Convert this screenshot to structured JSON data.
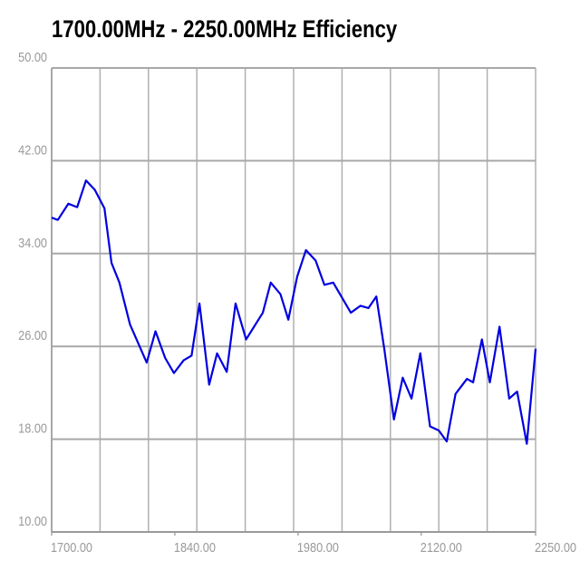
{
  "chart_data": {
    "type": "line",
    "title": "1700.00MHz - 2250.00MHz Efficiency",
    "x": [
      1700,
      1707,
      1719,
      1729,
      1739,
      1749,
      1760,
      1768,
      1777,
      1789,
      1808,
      1818,
      1829,
      1839,
      1850,
      1859,
      1868,
      1879,
      1888,
      1899,
      1909,
      1921,
      1940,
      1949,
      1960,
      1969,
      1979,
      1989,
      2000,
      2010,
      2020,
      2040,
      2051,
      2060,
      2069,
      2078,
      2089,
      2099,
      2109,
      2119,
      2130,
      2140,
      2149,
      2159,
      2172,
      2179,
      2189,
      2198,
      2209,
      2220,
      2229,
      2240,
      2250
    ],
    "series": [
      {
        "name": "Efficiency",
        "color": "#0000e0",
        "values": [
          37.1,
          36.9,
          38.3,
          38.0,
          40.3,
          39.5,
          37.9,
          33.2,
          31.5,
          27.9,
          24.6,
          27.3,
          25.0,
          23.7,
          24.8,
          25.2,
          29.7,
          22.7,
          25.4,
          23.8,
          29.7,
          26.6,
          28.9,
          31.5,
          30.5,
          28.3,
          32.0,
          34.3,
          33.4,
          31.3,
          31.5,
          28.9,
          29.5,
          29.3,
          30.3,
          25.8,
          19.7,
          23.3,
          21.5,
          25.4,
          19.1,
          18.75,
          17.8,
          21.9,
          23.2,
          22.9,
          26.6,
          22.9,
          27.7,
          21.5,
          22.1,
          17.6,
          25.8
        ]
      }
    ],
    "xlim": [
      1700,
      2250
    ],
    "ylim": [
      10,
      50
    ],
    "xticks": [
      {
        "value": 1700,
        "label": "1700.00"
      },
      {
        "value": 1840,
        "label": "1840.00"
      },
      {
        "value": 1980,
        "label": "1980.00"
      },
      {
        "value": 2120,
        "label": "2120.00"
      },
      {
        "value": 2250,
        "label": "2250.00"
      }
    ],
    "yticks": [
      {
        "value": 10,
        "label": "10.00"
      },
      {
        "value": 18,
        "label": "18.00"
      },
      {
        "value": 26,
        "label": "26.00"
      },
      {
        "value": 34,
        "label": "34.00"
      },
      {
        "value": 42,
        "label": "42.00"
      },
      {
        "value": 50,
        "label": "50.00"
      }
    ],
    "xgrid_lines": [
      1700,
      1755,
      1810,
      1865,
      1920,
      1975,
      2030,
      2085,
      2140,
      2195,
      2250
    ],
    "grid": true
  }
}
